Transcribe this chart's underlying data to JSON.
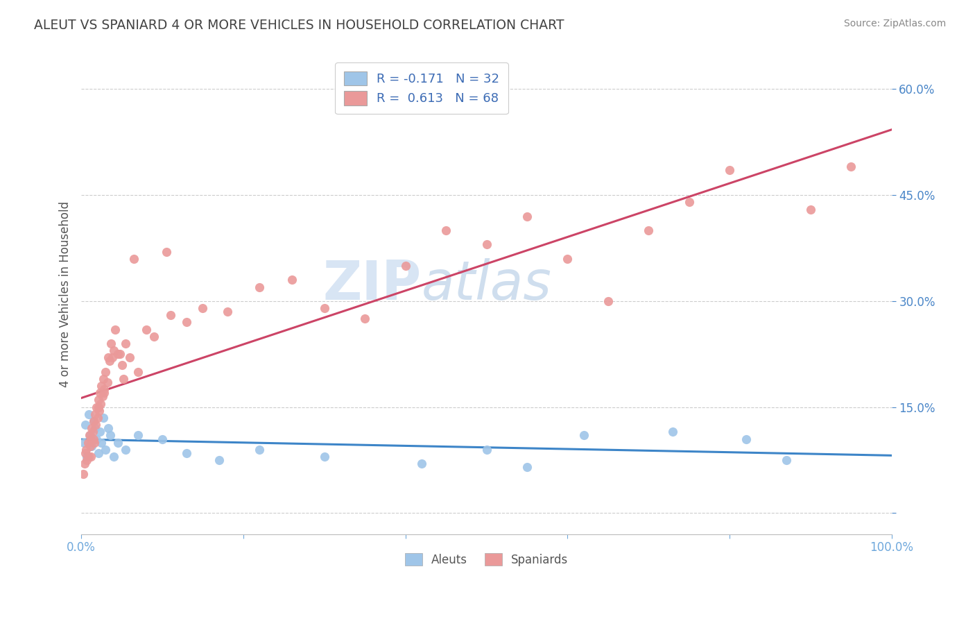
{
  "title": "ALEUT VS SPANIARD 4 OR MORE VEHICLES IN HOUSEHOLD CORRELATION CHART",
  "source": "Source: ZipAtlas.com",
  "ylabel": "4 or more Vehicles in Household",
  "xlim": [
    0.0,
    100.0
  ],
  "ylim": [
    -3.0,
    65.0
  ],
  "xticks": [
    0.0,
    20.0,
    40.0,
    60.0,
    80.0,
    100.0
  ],
  "xtick_labels": [
    "0.0%",
    "",
    "",
    "",
    "",
    "100.0%"
  ],
  "yticks": [
    0.0,
    15.0,
    30.0,
    45.0,
    60.0
  ],
  "ytick_labels": [
    "",
    "15.0%",
    "30.0%",
    "45.0%",
    "60.0%"
  ],
  "aleuts_color": "#9fc5e8",
  "spaniards_color": "#ea9999",
  "aleuts_line_color": "#3d85c8",
  "spaniards_line_color": "#cc4466",
  "legend_label_aleuts": "Aleuts",
  "legend_label_spaniards": "Spaniards",
  "R_aleuts": -0.171,
  "N_aleuts": 32,
  "R_spaniards": 0.613,
  "N_spaniards": 68,
  "title_color": "#434343",
  "axis_label_color": "#555555",
  "tick_color": "#6fa8dc",
  "ytick_color": "#4a86c8",
  "watermark_zip": "ZIP",
  "watermark_atlas": "atlas",
  "aleuts_x": [
    0.3,
    0.5,
    0.7,
    0.9,
    1.1,
    1.3,
    1.5,
    1.7,
    1.9,
    2.1,
    2.3,
    2.5,
    2.7,
    3.0,
    3.3,
    3.6,
    4.0,
    4.5,
    5.5,
    7.0,
    10.0,
    13.0,
    17.0,
    22.0,
    30.0,
    42.0,
    50.0,
    55.0,
    62.0,
    73.0,
    82.0,
    87.0
  ],
  "aleuts_y": [
    10.0,
    12.5,
    8.0,
    14.0,
    11.0,
    9.5,
    13.0,
    12.0,
    10.5,
    8.5,
    11.5,
    10.0,
    13.5,
    9.0,
    12.0,
    11.0,
    8.0,
    10.0,
    9.0,
    11.0,
    10.5,
    8.5,
    7.5,
    9.0,
    8.0,
    7.0,
    9.0,
    6.5,
    11.0,
    11.5,
    10.5,
    7.5
  ],
  "spaniards_x": [
    0.2,
    0.4,
    0.5,
    0.6,
    0.7,
    0.8,
    0.9,
    1.0,
    1.1,
    1.2,
    1.3,
    1.4,
    1.5,
    1.6,
    1.7,
    1.8,
    1.9,
    2.0,
    2.1,
    2.2,
    2.3,
    2.4,
    2.5,
    2.6,
    2.7,
    2.8,
    3.0,
    3.2,
    3.5,
    3.8,
    4.0,
    4.5,
    5.0,
    5.5,
    6.0,
    7.0,
    8.0,
    9.0,
    11.0,
    13.0,
    15.0,
    18.0,
    22.0,
    26.0,
    30.0,
    35.0,
    40.0,
    45.0,
    50.0,
    55.0,
    60.0,
    65.0,
    70.0,
    75.0,
    80.0,
    90.0,
    95.0,
    6.5,
    3.3,
    2.1,
    4.2,
    1.5,
    2.8,
    3.7,
    10.5,
    4.8,
    1.2,
    5.2
  ],
  "spaniards_y": [
    5.5,
    7.0,
    8.5,
    9.0,
    7.5,
    10.0,
    8.0,
    11.0,
    9.5,
    10.5,
    12.0,
    11.5,
    13.0,
    10.0,
    14.0,
    12.5,
    15.0,
    13.5,
    16.0,
    14.5,
    17.0,
    15.5,
    18.0,
    16.5,
    19.0,
    17.5,
    20.0,
    18.5,
    21.5,
    22.0,
    23.0,
    22.5,
    21.0,
    24.0,
    22.0,
    20.0,
    26.0,
    25.0,
    28.0,
    27.0,
    29.0,
    28.5,
    32.0,
    33.0,
    29.0,
    27.5,
    35.0,
    40.0,
    38.0,
    42.0,
    36.0,
    30.0,
    40.0,
    44.0,
    48.5,
    43.0,
    49.0,
    36.0,
    22.0,
    15.0,
    26.0,
    10.5,
    17.0,
    24.0,
    37.0,
    22.5,
    8.0,
    19.0
  ]
}
